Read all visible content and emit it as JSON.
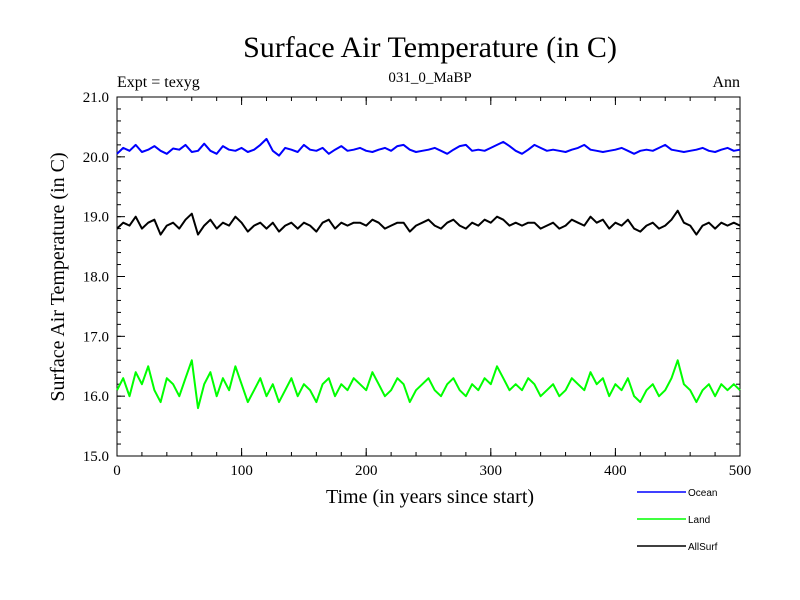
{
  "chart_data": {
    "type": "line",
    "title": "Surface Air Temperature (in C)",
    "subtitle": "031_0_MaBP",
    "left_note": "Expt = texyg",
    "right_note": "Ann",
    "xlabel": "Time (in years since start)",
    "ylabel": "Surface Air Temperature (in C)",
    "xlim": [
      0,
      500
    ],
    "ylim": [
      15.0,
      21.0
    ],
    "x_ticks": [
      "0",
      "100",
      "200",
      "300",
      "400",
      "500"
    ],
    "y_ticks": [
      "15.0",
      "16.0",
      "17.0",
      "18.0",
      "19.0",
      "20.0",
      "21.0"
    ],
    "grid": false,
    "legend_position": "bottom-right",
    "series": [
      {
        "name": "Ocean",
        "color": "#0000ff",
        "values": [
          20.05,
          20.15,
          20.1,
          20.2,
          20.08,
          20.12,
          20.18,
          20.1,
          20.05,
          20.14,
          20.12,
          20.2,
          20.08,
          20.1,
          20.22,
          20.1,
          20.05,
          20.18,
          20.12,
          20.1,
          20.15,
          20.08,
          20.12,
          20.2,
          20.3,
          20.1,
          20.02,
          20.15,
          20.12,
          20.08,
          20.2,
          20.12,
          20.1,
          20.15,
          20.05,
          20.12,
          20.18,
          20.1,
          20.12,
          20.15,
          20.1,
          20.08,
          20.12,
          20.15,
          20.1,
          20.18,
          20.2,
          20.12,
          20.08,
          20.1,
          20.12,
          20.15,
          20.1,
          20.05,
          20.12,
          20.18,
          20.2,
          20.1,
          20.12,
          20.1,
          20.15,
          20.2,
          20.25,
          20.18,
          20.1,
          20.05,
          20.12,
          20.2,
          20.15,
          20.1,
          20.12,
          20.1,
          20.08,
          20.12,
          20.15,
          20.2,
          20.12,
          20.1,
          20.08,
          20.1,
          20.12,
          20.15,
          20.1,
          20.05,
          20.1,
          20.12,
          20.1,
          20.15,
          20.2,
          20.12,
          20.1,
          20.08,
          20.1,
          20.12,
          20.15,
          20.1,
          20.08,
          20.12,
          20.15,
          20.1,
          20.12
        ]
      },
      {
        "name": "Land",
        "color": "#00ff00",
        "values": [
          16.1,
          16.3,
          16.0,
          16.4,
          16.2,
          16.5,
          16.1,
          15.9,
          16.3,
          16.2,
          16.0,
          16.3,
          16.6,
          15.8,
          16.2,
          16.4,
          16.0,
          16.3,
          16.1,
          16.5,
          16.2,
          15.9,
          16.1,
          16.3,
          16.0,
          16.2,
          15.9,
          16.1,
          16.3,
          16.0,
          16.2,
          16.1,
          15.9,
          16.2,
          16.3,
          16.0,
          16.2,
          16.1,
          16.3,
          16.2,
          16.1,
          16.4,
          16.2,
          16.0,
          16.1,
          16.3,
          16.2,
          15.9,
          16.1,
          16.2,
          16.3,
          16.1,
          16.0,
          16.2,
          16.3,
          16.1,
          16.0,
          16.2,
          16.1,
          16.3,
          16.2,
          16.5,
          16.3,
          16.1,
          16.2,
          16.1,
          16.3,
          16.2,
          16.0,
          16.1,
          16.2,
          16.0,
          16.1,
          16.3,
          16.2,
          16.1,
          16.4,
          16.2,
          16.3,
          16.0,
          16.2,
          16.1,
          16.3,
          16.0,
          15.9,
          16.1,
          16.2,
          16.0,
          16.1,
          16.3,
          16.6,
          16.2,
          16.1,
          15.9,
          16.1,
          16.2,
          16.0,
          16.2,
          16.1,
          16.2,
          16.1
        ]
      },
      {
        "name": "AllSurf",
        "color": "#000000",
        "values": [
          18.8,
          18.9,
          18.85,
          19.0,
          18.8,
          18.9,
          18.95,
          18.7,
          18.85,
          18.9,
          18.8,
          18.95,
          19.05,
          18.7,
          18.85,
          18.95,
          18.8,
          18.9,
          18.85,
          19.0,
          18.9,
          18.75,
          18.85,
          18.9,
          18.8,
          18.9,
          18.75,
          18.85,
          18.9,
          18.8,
          18.9,
          18.85,
          18.75,
          18.9,
          18.95,
          18.8,
          18.9,
          18.85,
          18.9,
          18.9,
          18.85,
          18.95,
          18.9,
          18.8,
          18.85,
          18.9,
          18.9,
          18.75,
          18.85,
          18.9,
          18.95,
          18.85,
          18.8,
          18.9,
          18.95,
          18.85,
          18.8,
          18.9,
          18.85,
          18.95,
          18.9,
          19.0,
          18.95,
          18.85,
          18.9,
          18.85,
          18.9,
          18.9,
          18.8,
          18.85,
          18.9,
          18.8,
          18.85,
          18.95,
          18.9,
          18.85,
          19.0,
          18.9,
          18.95,
          18.8,
          18.9,
          18.85,
          18.95,
          18.8,
          18.75,
          18.85,
          18.9,
          18.8,
          18.85,
          18.95,
          19.1,
          18.9,
          18.85,
          18.7,
          18.85,
          18.9,
          18.8,
          18.9,
          18.85,
          18.9,
          18.85
        ]
      }
    ]
  }
}
